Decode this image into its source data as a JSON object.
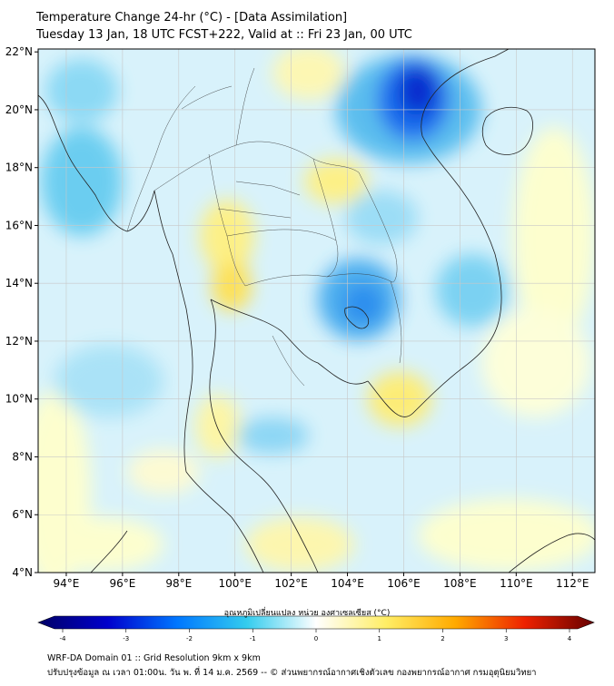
{
  "title_line1": "Temperature Change 24-hr (°C) - [Data Assimilation]",
  "title_line2": "Tuesday 13 Jan, 18 UTC FCST+222, Valid at :: Fri 23 Jan, 00 UTC",
  "lat_labels": [
    "22°N",
    "20°N",
    "18°N",
    "16°N",
    "14°N",
    "12°N",
    "10°N",
    "8°N",
    "6°N",
    "4°N"
  ],
  "lon_labels": [
    "94°E",
    "96°E",
    "98°E",
    "100°E",
    "102°E",
    "104°E",
    "106°E",
    "108°E",
    "110°E",
    "112°E"
  ],
  "colorbar": {
    "label": "อุณหภูมิเปลี่ยนแปลง หน่วย องศาเซลเซียส (°C)",
    "ticks": [
      "-4",
      "-3",
      "-2",
      "-1",
      "0",
      "1",
      "2",
      "3",
      "4"
    ],
    "colors": [
      "#000066",
      "#0000cc",
      "#0077ff",
      "#33ccee",
      "#ffffff",
      "#ffee66",
      "#ffaa00",
      "#ee2200",
      "#660000"
    ]
  },
  "footer_line1": "WRF-DA Domain 01 :: Grid Resolution 9km x 9km",
  "footer_line2": "ปรับปรุงข้อมูล ณ เวลา 01:00น. วัน พ. ที่ 14 ม.ค. 2569 -- © ส่วนพยากรณ์อากาศเชิงตัวเลข กองพยากรณ์อากาศ กรมอุตุนิยมวิทยา"
}
